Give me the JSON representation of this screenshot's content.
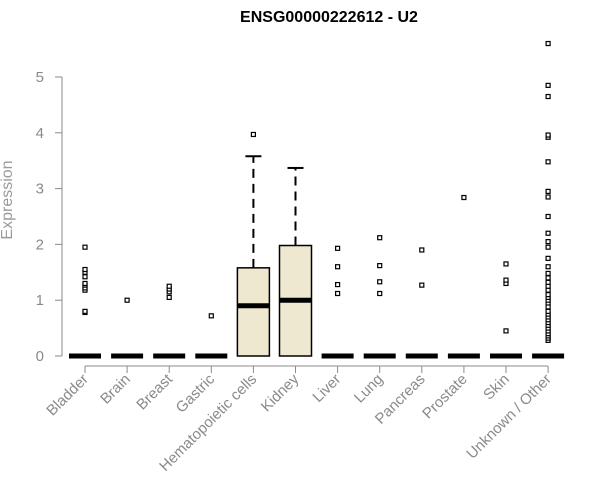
{
  "chart_data": {
    "type": "box",
    "title": "ENSG00000222612 - U2",
    "ylabel": "Expression",
    "xlabel": "",
    "ylim": [
      0,
      5.7
    ],
    "yticks": [
      0,
      1,
      2,
      3,
      4,
      5
    ],
    "grid": false,
    "legend": "none",
    "box_fill": "#efe8d0",
    "box_stroke": "#000000",
    "axis_color": "#8a8a8a",
    "categories": [
      {
        "name": "Bladder",
        "box": {
          "q1": 0,
          "median": 0,
          "q3": 0,
          "whisker_low": 0,
          "whisker_high": 0
        },
        "outliers": [
          0.78,
          0.8,
          1.18,
          1.22,
          1.27,
          1.3,
          1.42,
          1.5,
          1.55,
          1.95
        ]
      },
      {
        "name": "Brain",
        "box": {
          "q1": 0,
          "median": 0,
          "q3": 0,
          "whisker_low": 0,
          "whisker_high": 0
        },
        "outliers": [
          1.0
        ]
      },
      {
        "name": "Breast",
        "box": {
          "q1": 0,
          "median": 0,
          "q3": 0,
          "whisker_low": 0,
          "whisker_high": 0
        },
        "outliers": [
          1.05,
          1.15,
          1.2,
          1.25
        ]
      },
      {
        "name": "Gastric",
        "box": {
          "q1": 0,
          "median": 0,
          "q3": 0,
          "whisker_low": 0,
          "whisker_high": 0
        },
        "outliers": [
          0.72
        ]
      },
      {
        "name": "Hematopoietic cells",
        "box": {
          "q1": 0,
          "median": 0.9,
          "q3": 1.58,
          "whisker_low": 0,
          "whisker_high": 3.58
        },
        "outliers": [
          3.97
        ]
      },
      {
        "name": "Kidney",
        "box": {
          "q1": 0,
          "median": 1.0,
          "q3": 1.98,
          "whisker_low": 0,
          "whisker_high": 3.37
        },
        "outliers": []
      },
      {
        "name": "Liver",
        "box": {
          "q1": 0,
          "median": 0,
          "q3": 0,
          "whisker_low": 0,
          "whisker_high": 0
        },
        "outliers": [
          1.12,
          1.28,
          1.6,
          1.93
        ]
      },
      {
        "name": "Lung",
        "box": {
          "q1": 0,
          "median": 0,
          "q3": 0,
          "whisker_low": 0,
          "whisker_high": 0
        },
        "outliers": [
          1.12,
          1.33,
          1.62,
          2.12
        ]
      },
      {
        "name": "Pancreas",
        "box": {
          "q1": 0,
          "median": 0,
          "q3": 0,
          "whisker_low": 0,
          "whisker_high": 0
        },
        "outliers": [
          1.27,
          1.9
        ]
      },
      {
        "name": "Prostate",
        "box": {
          "q1": 0,
          "median": 0,
          "q3": 0,
          "whisker_low": 0,
          "whisker_high": 0
        },
        "outliers": [
          2.84
        ]
      },
      {
        "name": "Skin",
        "box": {
          "q1": 0,
          "median": 0,
          "q3": 0,
          "whisker_low": 0,
          "whisker_high": 0
        },
        "outliers": [
          0.45,
          1.3,
          1.36,
          1.65
        ]
      },
      {
        "name": "Unknown / Other",
        "box": {
          "q1": 0,
          "median": 0,
          "q3": 0,
          "whisker_low": 0,
          "whisker_high": 0
        },
        "outliers": [
          0.28,
          0.32,
          0.36,
          0.4,
          0.45,
          0.5,
          0.55,
          0.6,
          0.65,
          0.7,
          0.75,
          0.8,
          0.88,
          0.95,
          1.0,
          1.05,
          1.1,
          1.18,
          1.25,
          1.32,
          1.4,
          1.48,
          1.6,
          1.75,
          1.95,
          2.05,
          2.2,
          2.5,
          2.85,
          2.95,
          3.48,
          3.92,
          3.96,
          4.65,
          4.85,
          5.6
        ]
      }
    ]
  }
}
